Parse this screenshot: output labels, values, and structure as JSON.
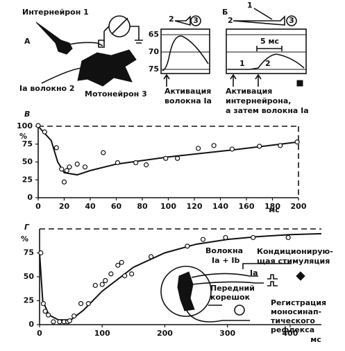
{
  "diagram": {
    "interneuron_label": "Интернейрон 1",
    "panel_a_letter": "А",
    "fiber_label": "Ia волокно 2",
    "motoneuron_label": "Мотонейрон 3",
    "trace_a": {
      "pathway_from": "2",
      "pathway_to": "3",
      "yticks": [
        65,
        70,
        75
      ],
      "caption": [
        "Активация",
        "волокна Ia"
      ]
    },
    "trace_b": {
      "letter": "Б",
      "pathway_from": "2",
      "interneuron_input": "1",
      "pathway_to": "3",
      "interval": "5 мс",
      "stim_1": "1",
      "stim_2": "2",
      "caption": [
        "Активация",
        "интернейрона,",
        "а затем волокна Ia"
      ]
    },
    "inset": {
      "fibers": [
        "Волокна",
        "Ia + Ib"
      ],
      "fiber_ia": "Ia",
      "root": [
        "Передний",
        "корешок"
      ],
      "conditioning": [
        "Кондиционирую-",
        "щая стимуляция"
      ],
      "recording": [
        "Регистрация",
        "моносинап-",
        "тического",
        "рефлекса"
      ]
    }
  },
  "chart_data": [
    {
      "type": "scatter",
      "title": "В",
      "xlabel": "мс",
      "ylabel": "%",
      "x": [
        0,
        5,
        14,
        18,
        20,
        22,
        24,
        30,
        36,
        50,
        61,
        75,
        83,
        98,
        107,
        123,
        135,
        149,
        170,
        186,
        199
      ],
      "y": [
        101,
        92,
        70,
        40,
        22,
        38,
        43,
        47,
        43,
        63,
        49,
        49,
        46,
        55,
        55,
        69,
        73,
        68,
        72,
        73,
        78
      ],
      "fit": {
        "x": [
          0,
          10,
          15,
          20,
          30,
          40,
          60,
          100,
          150,
          200
        ],
        "y": [
          100,
          80,
          50,
          35,
          32,
          38,
          47,
          57,
          67,
          78
        ]
      },
      "xlim": [
        0,
        200
      ],
      "ylim": [
        0,
        100
      ],
      "xticks": [
        0,
        20,
        40,
        60,
        80,
        100,
        120,
        140,
        160,
        180,
        200
      ],
      "yticks": [
        0,
        25,
        50,
        75,
        100
      ]
    },
    {
      "type": "scatter",
      "title": "Г",
      "xlabel": "мс",
      "ylabel": "%",
      "x": [
        2,
        6,
        9,
        14,
        22,
        32,
        39,
        45,
        48,
        55,
        66,
        78,
        89,
        100,
        105,
        114,
        125,
        131,
        136,
        147,
        178,
        236,
        261,
        297,
        341,
        397
      ],
      "y": [
        75,
        22,
        14,
        10,
        3,
        3,
        3,
        3,
        4,
        9,
        22,
        22,
        41,
        42,
        46,
        53,
        62,
        65,
        51,
        53,
        71,
        82,
        89,
        91,
        91,
        91
      ],
      "fit": {
        "x": [
          0,
          5,
          15,
          30,
          50,
          70,
          100,
          150,
          200,
          250,
          300,
          350,
          400,
          450
        ],
        "y": [
          75,
          25,
          10,
          5,
          5,
          15,
          35,
          60,
          75,
          84,
          89,
          92,
          94,
          95
        ]
      },
      "xlim": [
        0,
        450
      ],
      "ylim": [
        0,
        100
      ],
      "xticks": [
        0,
        100,
        200,
        300,
        400
      ],
      "yticks": [
        0,
        25,
        50,
        75
      ]
    }
  ]
}
